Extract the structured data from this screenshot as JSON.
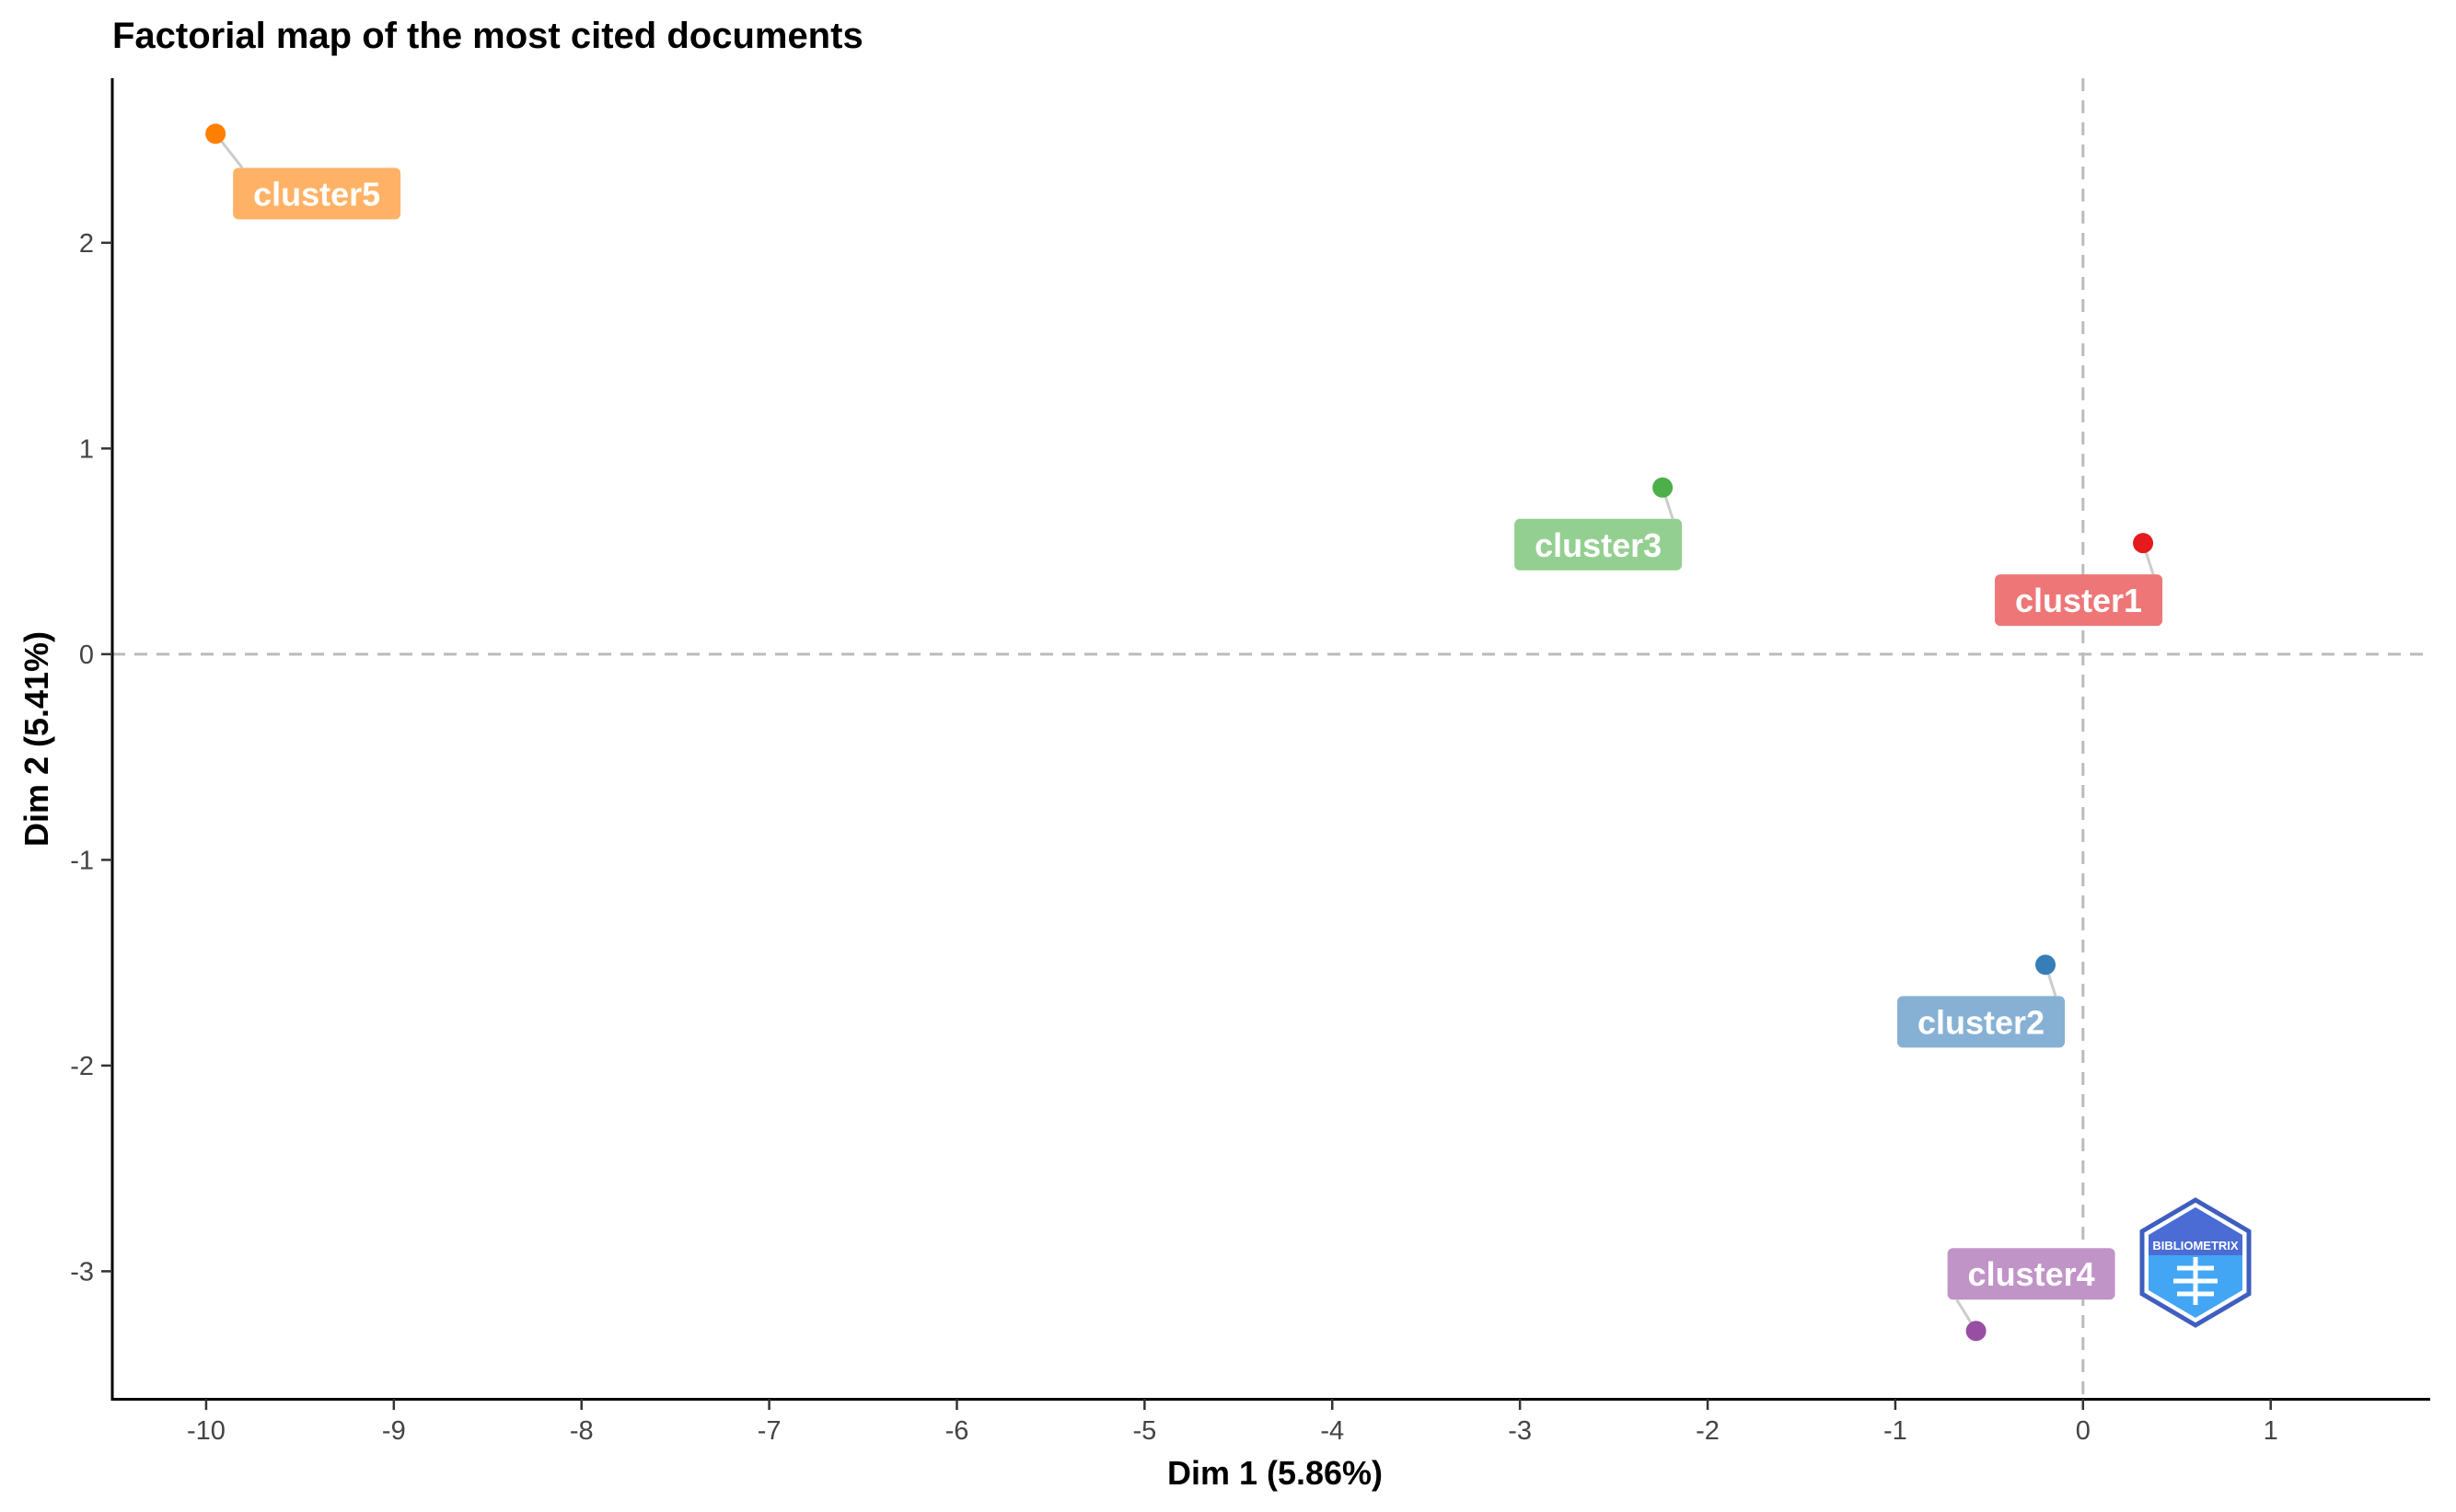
{
  "chart_data": {
    "type": "scatter",
    "title": "Factorial map of the most cited documents",
    "xlabel": "Dim 1 (5.86%)",
    "ylabel": "Dim 2 (5.41%)",
    "xlim": [
      -10.5,
      1.85
    ],
    "ylim": [
      -3.62,
      2.8
    ],
    "xticks": [
      -10,
      -9,
      -8,
      -7,
      -6,
      -5,
      -4,
      -3,
      -2,
      -1,
      0,
      1
    ],
    "yticks": [
      -3,
      -2,
      -1,
      0,
      1,
      2
    ],
    "xtick_labels": [
      "-10",
      "-9",
      "-8",
      "-7",
      "-6",
      "-5",
      "-4",
      "-3",
      "-2",
      "-1",
      "0",
      "1"
    ],
    "ytick_labels": [
      "-3",
      "-2",
      "-1",
      "0",
      "1",
      "2"
    ],
    "reference_lines": {
      "x": 0,
      "y": 0,
      "style": "dashed"
    },
    "grid": false,
    "points": [
      {
        "label": "cluster1",
        "x": 0.32,
        "y": 0.54,
        "color": "#E41A1C",
        "label_color": "#EE7677",
        "label_pos": "below-left"
      },
      {
        "label": "cluster2",
        "x": -0.2,
        "y": -1.51,
        "color": "#377EB8",
        "label_color": "#87B1D4",
        "label_pos": "below-left"
      },
      {
        "label": "cluster3",
        "x": -2.24,
        "y": 0.81,
        "color": "#4DAF4A",
        "label_color": "#94CF92",
        "label_pos": "below-left"
      },
      {
        "label": "cluster4",
        "x": -0.57,
        "y": -3.29,
        "color": "#984EA3",
        "label_color": "#C194C8",
        "label_pos": "above-right"
      },
      {
        "label": "cluster5",
        "x": -9.95,
        "y": 2.53,
        "color": "#FF7F00",
        "label_color": "#FFB266",
        "label_pos": "below-right"
      }
    ]
  },
  "watermark": {
    "text": "BIBLIOMETRIX",
    "color": "#1E88E5"
  }
}
